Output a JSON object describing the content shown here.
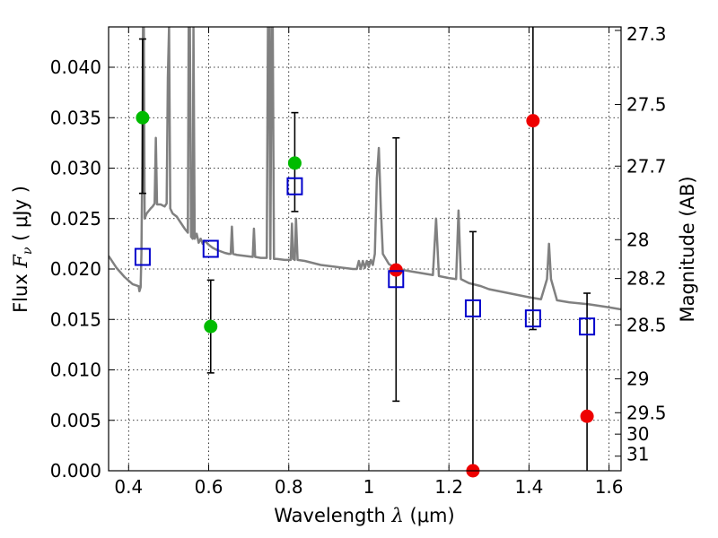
{
  "chart_data": {
    "type": "scatter",
    "xlabel_prefix": "Wavelength  ",
    "xlabel_symbol": "λ",
    "xlabel_unit": " (μm)",
    "ylabel_prefix": "Flux  ",
    "ylabel_symbol": "F",
    "ylabel_subscript": "ν",
    "ylabel_unit": "  ( μJy )",
    "y2label": "Magnitude (AB)",
    "xlim": [
      0.35,
      1.63
    ],
    "ylim": [
      0.0,
      0.044
    ],
    "grid": true,
    "x_ticks": [
      {
        "value": 0.4,
        "label": "0.4"
      },
      {
        "value": 0.6,
        "label": "0.6"
      },
      {
        "value": 0.8,
        "label": "0.8"
      },
      {
        "value": 1.0,
        "label": "1"
      },
      {
        "value": 1.2,
        "label": "1.2"
      },
      {
        "value": 1.4,
        "label": "1.4"
      },
      {
        "value": 1.6,
        "label": "1.6"
      }
    ],
    "y_ticks": [
      {
        "value": 0.0,
        "label": "0.000"
      },
      {
        "value": 0.005,
        "label": "0.005"
      },
      {
        "value": 0.01,
        "label": "0.010"
      },
      {
        "value": 0.015,
        "label": "0.015"
      },
      {
        "value": 0.02,
        "label": "0.020"
      },
      {
        "value": 0.025,
        "label": "0.025"
      },
      {
        "value": 0.03,
        "label": "0.030"
      },
      {
        "value": 0.035,
        "label": "0.035"
      },
      {
        "value": 0.04,
        "label": "0.040"
      }
    ],
    "y2_ticks": [
      {
        "value": 27.3,
        "label": "27.3"
      },
      {
        "value": 27.5,
        "label": "27.5"
      },
      {
        "value": 27.7,
        "label": "27.7"
      },
      {
        "value": 28.0,
        "label": "28"
      },
      {
        "value": 28.2,
        "label": "28.2"
      },
      {
        "value": 28.5,
        "label": "28.5"
      },
      {
        "value": 29.0,
        "label": "29"
      },
      {
        "value": 29.5,
        "label": "29.5"
      },
      {
        "value": 30.0,
        "label": "30"
      },
      {
        "value": 31.0,
        "label": "31"
      }
    ],
    "model_spectrum": {
      "color": "#808080",
      "points": [
        [
          0.35,
          0.0213
        ],
        [
          0.37,
          0.0201
        ],
        [
          0.39,
          0.0192
        ],
        [
          0.41,
          0.0185
        ],
        [
          0.425,
          0.0183
        ],
        [
          0.427,
          0.0178
        ],
        [
          0.43,
          0.0182
        ],
        [
          0.432,
          0.0215
        ],
        [
          0.434,
          0.03
        ],
        [
          0.436,
          0.044
        ],
        [
          0.438,
          0.044
        ],
        [
          0.44,
          0.025
        ],
        [
          0.445,
          0.0255
        ],
        [
          0.455,
          0.026
        ],
        [
          0.46,
          0.0262
        ],
        [
          0.465,
          0.0265
        ],
        [
          0.468,
          0.033
        ],
        [
          0.471,
          0.0264
        ],
        [
          0.48,
          0.0264
        ],
        [
          0.49,
          0.0262
        ],
        [
          0.495,
          0.0265
        ],
        [
          0.498,
          0.039
        ],
        [
          0.501,
          0.044
        ],
        [
          0.504,
          0.026
        ],
        [
          0.51,
          0.0255
        ],
        [
          0.52,
          0.0252
        ],
        [
          0.53,
          0.0246
        ],
        [
          0.54,
          0.024
        ],
        [
          0.548,
          0.0236
        ],
        [
          0.55,
          0.044
        ],
        [
          0.553,
          0.044
        ],
        [
          0.556,
          0.0232
        ],
        [
          0.56,
          0.023
        ],
        [
          0.562,
          0.044
        ],
        [
          0.565,
          0.023
        ],
        [
          0.57,
          0.0235
        ],
        [
          0.575,
          0.0226
        ],
        [
          0.58,
          0.023
        ],
        [
          0.585,
          0.0225
        ],
        [
          0.59,
          0.0228
        ],
        [
          0.6,
          0.0224
        ],
        [
          0.61,
          0.0221
        ],
        [
          0.62,
          0.0219
        ],
        [
          0.64,
          0.0216
        ],
        [
          0.65,
          0.0215
        ],
        [
          0.655,
          0.0215
        ],
        [
          0.658,
          0.0242
        ],
        [
          0.661,
          0.0215
        ],
        [
          0.67,
          0.0214
        ],
        [
          0.69,
          0.0213
        ],
        [
          0.71,
          0.0212
        ],
        [
          0.713,
          0.024
        ],
        [
          0.716,
          0.0212
        ],
        [
          0.73,
          0.0211
        ],
        [
          0.745,
          0.0211
        ],
        [
          0.748,
          0.044
        ],
        [
          0.751,
          0.044
        ],
        [
          0.754,
          0.021
        ],
        [
          0.757,
          0.044
        ],
        [
          0.76,
          0.044
        ],
        [
          0.763,
          0.021
        ],
        [
          0.77,
          0.021
        ],
        [
          0.79,
          0.0209
        ],
        [
          0.8,
          0.0209
        ],
        [
          0.805,
          0.0209
        ],
        [
          0.808,
          0.0245
        ],
        [
          0.811,
          0.021
        ],
        [
          0.815,
          0.0209
        ],
        [
          0.818,
          0.025
        ],
        [
          0.822,
          0.0209
        ],
        [
          0.84,
          0.0208
        ],
        [
          0.86,
          0.0206
        ],
        [
          0.88,
          0.0204
        ],
        [
          0.9,
          0.0203
        ],
        [
          0.92,
          0.0202
        ],
        [
          0.94,
          0.0201
        ],
        [
          0.96,
          0.02
        ],
        [
          0.97,
          0.02
        ],
        [
          0.975,
          0.0208
        ],
        [
          0.98,
          0.02
        ],
        [
          0.985,
          0.0208
        ],
        [
          0.99,
          0.0201
        ],
        [
          0.995,
          0.0208
        ],
        [
          1.0,
          0.0202
        ],
        [
          1.005,
          0.0209
        ],
        [
          1.01,
          0.0204
        ],
        [
          1.015,
          0.0215
        ],
        [
          1.02,
          0.029
        ],
        [
          1.025,
          0.032
        ],
        [
          1.03,
          0.026
        ],
        [
          1.035,
          0.0215
        ],
        [
          1.05,
          0.0205
        ],
        [
          1.07,
          0.02
        ],
        [
          1.1,
          0.0198
        ],
        [
          1.13,
          0.0196
        ],
        [
          1.16,
          0.0194
        ],
        [
          1.168,
          0.025
        ],
        [
          1.175,
          0.0193
        ],
        [
          1.2,
          0.0191
        ],
        [
          1.218,
          0.019
        ],
        [
          1.224,
          0.0258
        ],
        [
          1.23,
          0.019
        ],
        [
          1.25,
          0.0186
        ],
        [
          1.28,
          0.0183
        ],
        [
          1.3,
          0.018
        ],
        [
          1.35,
          0.0176
        ],
        [
          1.4,
          0.0172
        ],
        [
          1.43,
          0.017
        ],
        [
          1.445,
          0.019
        ],
        [
          1.45,
          0.0225
        ],
        [
          1.455,
          0.019
        ],
        [
          1.47,
          0.0169
        ],
        [
          1.5,
          0.0167
        ],
        [
          1.55,
          0.0165
        ],
        [
          1.6,
          0.0162
        ],
        [
          1.63,
          0.016
        ]
      ]
    },
    "observed_points": [
      {
        "x": 0.435,
        "y": 0.035,
        "yerr_low": 0.0275,
        "yerr_high": 0.0428,
        "color": "#00bb00"
      },
      {
        "x": 0.605,
        "y": 0.0143,
        "yerr_low": 0.0097,
        "yerr_high": 0.0189,
        "color": "#00bb00"
      },
      {
        "x": 0.815,
        "y": 0.0305,
        "yerr_low": 0.0257,
        "yerr_high": 0.0355,
        "color": "#00bb00"
      },
      {
        "x": 1.068,
        "y": 0.0199,
        "yerr_low": 0.0069,
        "yerr_high": 0.033,
        "color": "#ee0000"
      },
      {
        "x": 1.26,
        "y": 0.0,
        "yerr_low": 0.0,
        "yerr_high": 0.0237,
        "color": "#ee0000"
      },
      {
        "x": 1.41,
        "y": 0.0347,
        "yerr_low": 0.014,
        "yerr_high": 0.044,
        "color": "#ee0000"
      },
      {
        "x": 1.545,
        "y": 0.0054,
        "yerr_low": 0.0,
        "yerr_high": 0.0176,
        "color": "#ee0000"
      }
    ],
    "model_photometry": {
      "color": "#0000cc",
      "points": [
        {
          "x": 0.435,
          "y": 0.0212
        },
        {
          "x": 0.605,
          "y": 0.022
        },
        {
          "x": 0.815,
          "y": 0.0282
        },
        {
          "x": 1.068,
          "y": 0.019
        },
        {
          "x": 1.26,
          "y": 0.0161
        },
        {
          "x": 1.41,
          "y": 0.0151
        },
        {
          "x": 1.545,
          "y": 0.0143
        }
      ]
    }
  }
}
